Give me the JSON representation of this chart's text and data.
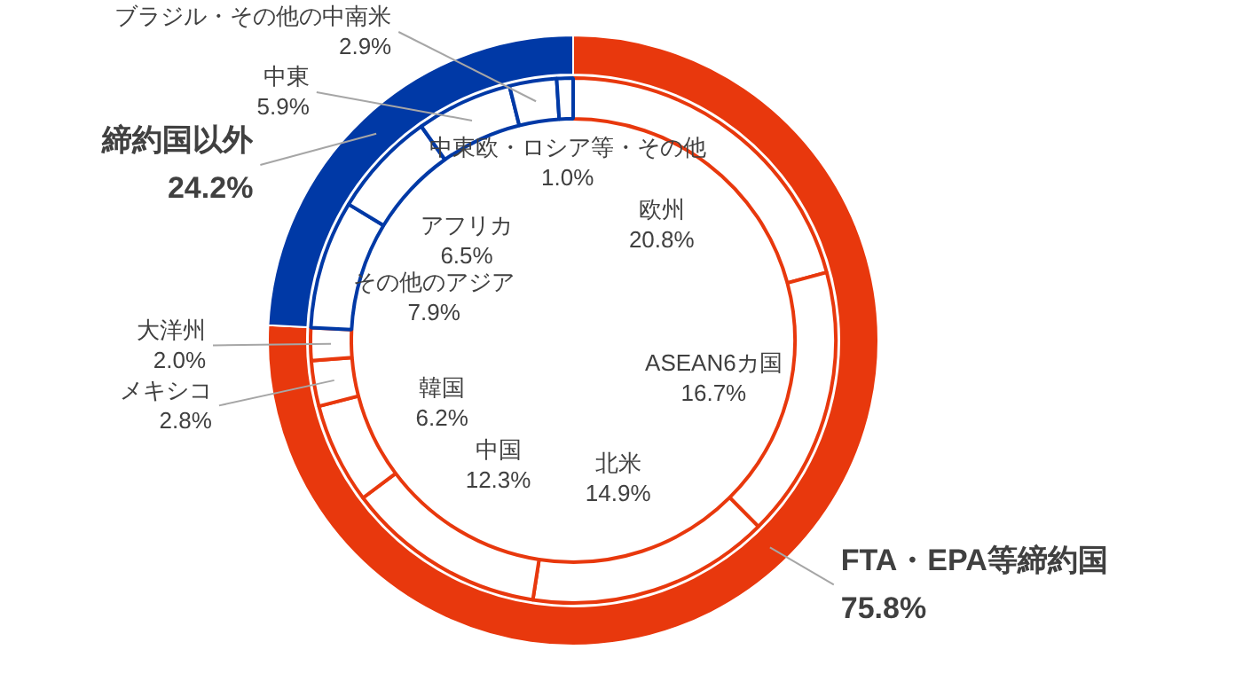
{
  "chart_data": [
    {
      "type": "donut",
      "legend": false,
      "data_labels": true,
      "categories": [
        "FTA・EPA等締約国",
        "締約国以外"
      ],
      "values": [
        75.8,
        24.2
      ],
      "colors": [
        "#e8380d",
        "#0039a6"
      ],
      "value_labels": [
        "75.8%",
        "24.2%"
      ]
    },
    {
      "type": "donut",
      "legend": false,
      "data_labels": true,
      "categories": [
        "欧州",
        "ASEAN6カ国",
        "北米",
        "中国",
        "韓国",
        "メキシコ",
        "大洋州",
        "その他のアジア",
        "アフリカ",
        "中東",
        "ブラジル・その他の中南米",
        "中東欧・ロシア等・その他"
      ],
      "values": [
        20.8,
        16.7,
        14.9,
        12.3,
        6.2,
        2.8,
        2.0,
        7.9,
        6.5,
        5.9,
        2.9,
        1.0
      ],
      "colors": [
        "#e8380d",
        "#e8380d",
        "#e8380d",
        "#e8380d",
        "#e8380d",
        "#e8380d",
        "#e8380d",
        "#0039a6",
        "#0039a6",
        "#0039a6",
        "#0039a6",
        "#0039a6"
      ],
      "value_labels": [
        "20.8%",
        "16.7%",
        "14.9%",
        "12.3%",
        "6.2%",
        "2.8%",
        "2.0%",
        "7.9%",
        "6.5%",
        "5.9%",
        "2.9%",
        "1.0%"
      ]
    }
  ]
}
